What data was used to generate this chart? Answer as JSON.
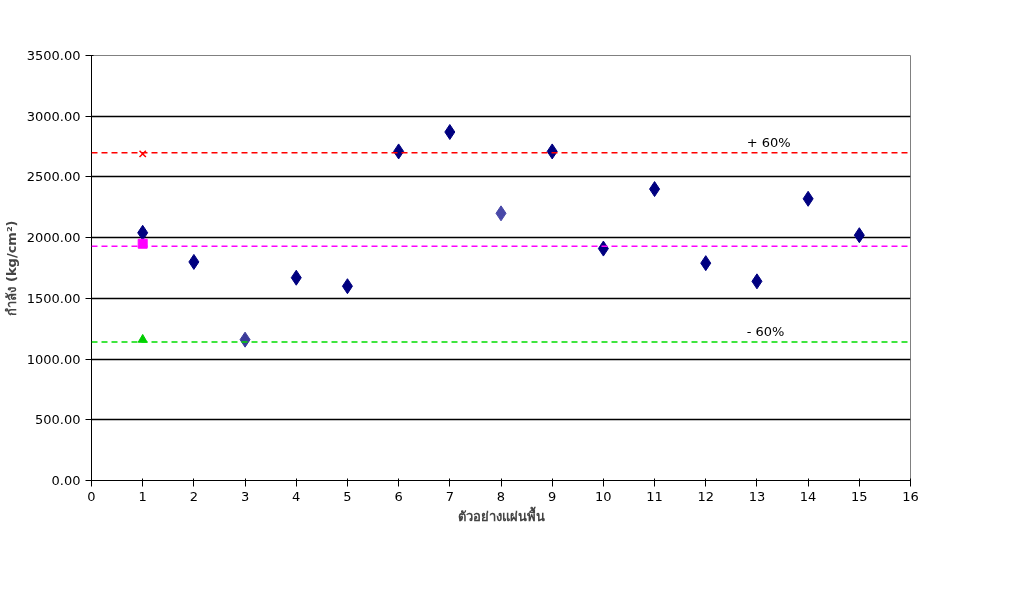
{
  "chart_data": {
    "type": "scatter",
    "xlabel": "ตัวอย่างแผ่นพื้น",
    "ylabel": "กำลัง (kg/cm²)",
    "series": [
      {
        "marker": "diamond",
        "color": "#000080",
        "colors": [
          null,
          null,
          "#3c3c9a",
          null,
          null,
          null,
          null,
          "#4848a8",
          null,
          null,
          null,
          null,
          null,
          null,
          null
        ],
        "x": [
          1,
          2,
          3,
          4,
          5,
          6,
          7,
          8,
          9,
          10,
          11,
          12,
          13,
          14,
          15
        ],
        "values": [
          2040,
          1800,
          1160,
          1670,
          1600,
          2710,
          2870,
          2200,
          2710,
          1910,
          2400,
          1790,
          1640,
          2320,
          2020
        ]
      },
      {
        "marker": "cross",
        "color": "#ff0000",
        "x": [
          1
        ],
        "values": [
          2690
        ]
      },
      {
        "marker": "square",
        "color": "#ff00ff",
        "x": [
          1
        ],
        "values": [
          1950
        ]
      },
      {
        "marker": "triangle",
        "color": "#00cc00",
        "x": [
          1
        ],
        "values": [
          1160
        ]
      }
    ],
    "ref_lines": [
      {
        "axis": "y",
        "value": 2700,
        "color": "#ff0000",
        "line_style": "dashed"
      },
      {
        "axis": "y",
        "value": 1930,
        "color": "#ff00ff",
        "line_style": "dashed"
      },
      {
        "axis": "y",
        "value": 1140,
        "color": "#00dd00",
        "line_style": "dashed"
      }
    ],
    "annotations": [
      {
        "text": "+ 60%",
        "x": 12.8,
        "y": 2700
      },
      {
        "text": "- 60%",
        "x": 12.8,
        "y": 1140
      }
    ],
    "xlim": [
      0,
      16
    ],
    "xticks": [
      0,
      1,
      2,
      3,
      4,
      5,
      6,
      7,
      8,
      9,
      10,
      11,
      12,
      13,
      14,
      15,
      16
    ],
    "ylim": [
      0,
      3500
    ],
    "yticks": [
      {
        "value": 0,
        "label": "0.00"
      },
      {
        "value": 500,
        "label": "500.00"
      },
      {
        "value": 1000,
        "label": "1000.00"
      },
      {
        "value": 1500,
        "label": "1500.00"
      },
      {
        "value": 2000,
        "label": "2000.00"
      },
      {
        "value": 2500,
        "label": "2500.00"
      },
      {
        "value": 3000,
        "label": "3000.00"
      },
      {
        "value": 3500,
        "label": "3500.00"
      }
    ],
    "grid": "y"
  }
}
